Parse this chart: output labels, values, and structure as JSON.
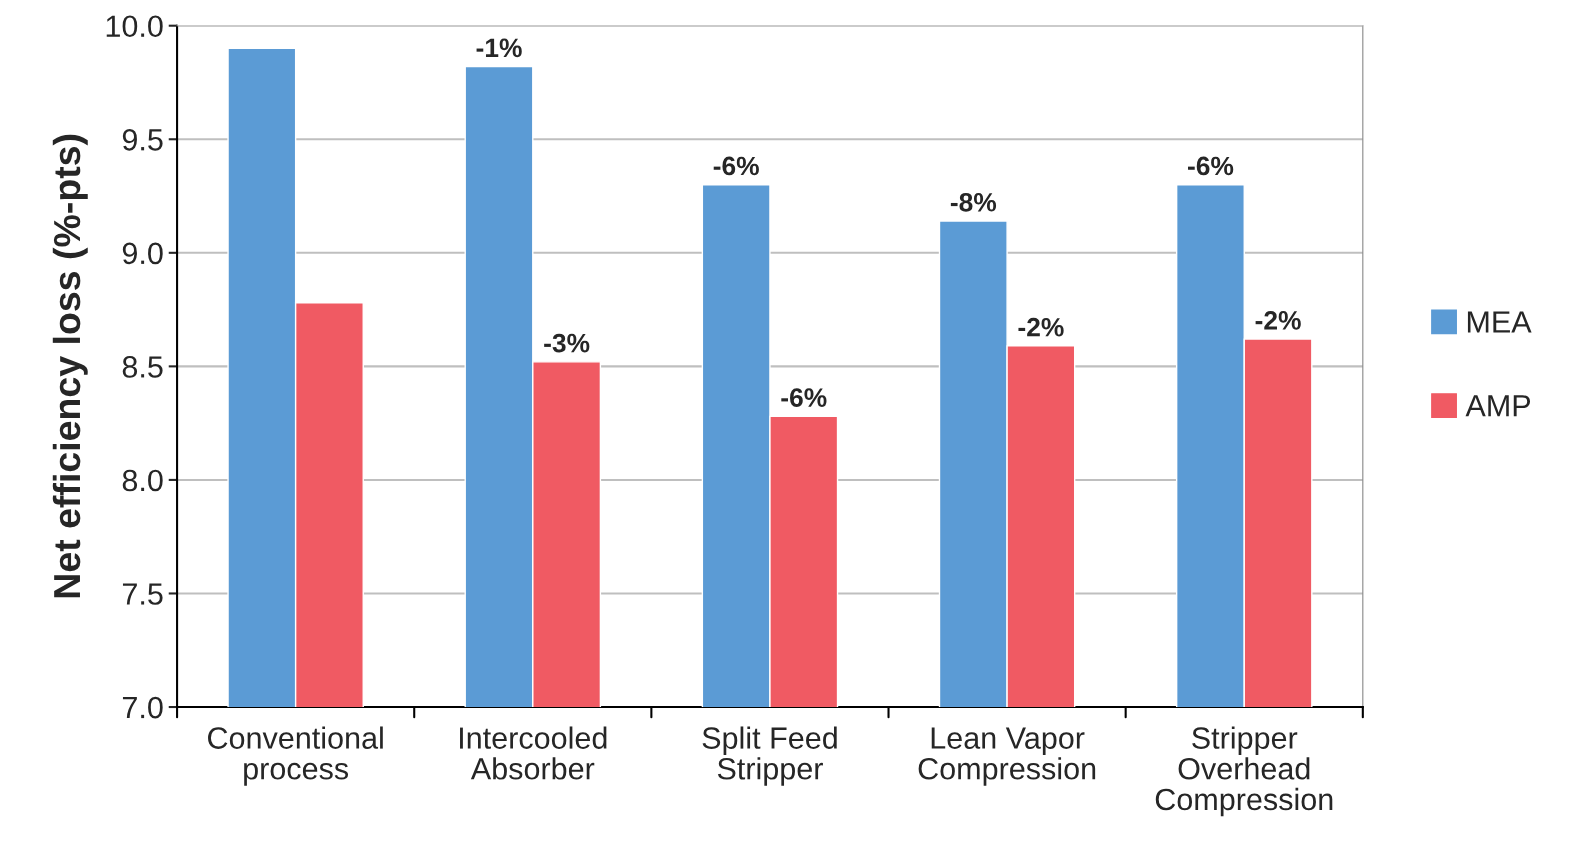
{
  "chart_data": {
    "type": "bar",
    "ylabel": "Net efficiency loss (%-pts)",
    "categories": [
      "Conventional\nprocess",
      "Intercooled\nAbsorber",
      "Split Feed\nStripper",
      "Lean Vapor\nCompression",
      "Stripper\nOverhead\nCompression"
    ],
    "series": [
      {
        "name": "MEA",
        "color": "#5b9bd5",
        "values": [
          9.9,
          9.82,
          9.3,
          9.14,
          9.3
        ]
      },
      {
        "name": "AMP",
        "color": "#f05a63",
        "values": [
          8.78,
          8.52,
          8.28,
          8.59,
          8.62
        ]
      }
    ],
    "annotations": [
      {
        "text": "-1%",
        "x": "Intercooled\nAbsorber",
        "y": 9.82
      },
      {
        "text": "-6%",
        "x": "Split Feed\nStripper",
        "y": 9.3
      },
      {
        "text": "-8%",
        "x": "Lean Vapor\nCompression",
        "y": 9.14
      },
      {
        "text": "-6%",
        "x": "Stripper\nOverhead\nCompression",
        "y": 9.3
      },
      {
        "text": "-3%",
        "x": "Intercooled\nAbsorber",
        "y": 8.52
      },
      {
        "text": "-6%",
        "x": "Split Feed\nStripper",
        "y": 8.28
      },
      {
        "text": "-2%",
        "x": "Lean Vapor\nCompression",
        "y": 8.59
      },
      {
        "text": "-2%",
        "x": "Stripper\nOverhead\nCompression",
        "y": 8.62
      }
    ],
    "ylim": [
      7.0,
      10.0
    ],
    "yticks": [
      {
        "value": 7.0,
        "label": "7.0"
      },
      {
        "value": 7.5,
        "label": "7.5"
      },
      {
        "value": 8.0,
        "label": "8.0"
      },
      {
        "value": 8.5,
        "label": "8.5"
      },
      {
        "value": 9.0,
        "label": "9.0"
      },
      {
        "value": 9.5,
        "label": "9.5"
      },
      {
        "value": 10.0,
        "label": "10.0"
      }
    ],
    "grid": "y",
    "legend": "right"
  }
}
